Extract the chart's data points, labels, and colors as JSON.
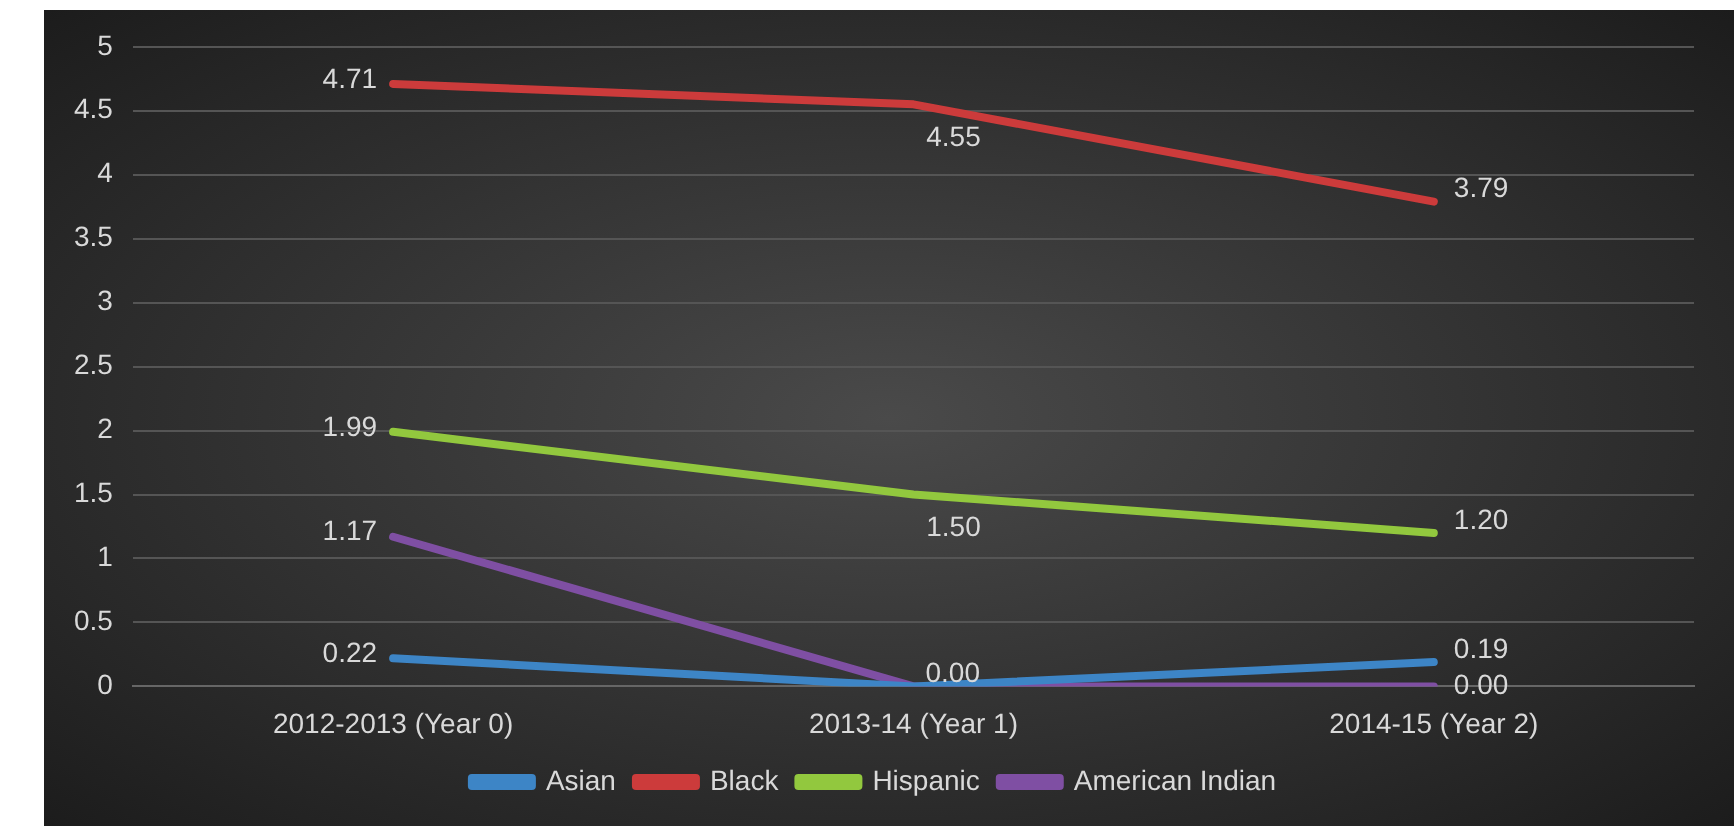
{
  "chart_data": {
    "type": "line",
    "categories": [
      "2012-2013 (Year 0)",
      "2013-14 (Year 1)",
      "2014-15 (Year 2)"
    ],
    "series": [
      {
        "name": "Asian",
        "color": "#3d85c6",
        "values": [
          0.22,
          0,
          0.19
        ],
        "value_labels": [
          "0.22",
          null,
          "0.19"
        ]
      },
      {
        "name": "Black",
        "color": "#cc3b3b",
        "values": [
          4.71,
          4.55,
          3.79
        ],
        "value_labels": [
          "4.71",
          "4.55",
          "3.79"
        ]
      },
      {
        "name": "Hispanic",
        "color": "#92c83e",
        "values": [
          1.99,
          1.5,
          1.2
        ],
        "value_labels": [
          "1.99",
          "1.50",
          "1.20"
        ]
      },
      {
        "name": "American Indian",
        "color": "#7f4fa3",
        "values": [
          1.17,
          0,
          0
        ],
        "value_labels": [
          "1.17",
          "0.00",
          "0.00"
        ]
      }
    ],
    "ylim": [
      0,
      5
    ],
    "yticks": [
      0,
      0.5,
      1,
      1.5,
      2,
      2.5,
      3,
      3.5,
      4,
      4.5,
      5
    ],
    "grid": "y",
    "legend": "bottom",
    "marker": "none",
    "line_style": "solid"
  }
}
